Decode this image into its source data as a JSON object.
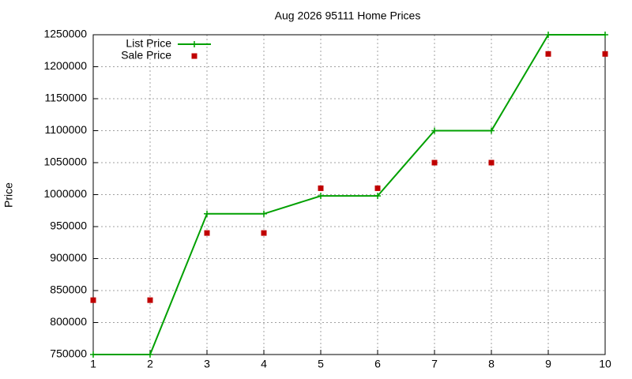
{
  "chart_data": {
    "type": "line",
    "title": "Aug 2026 95111 Home Prices",
    "y_label": "Price",
    "x": [
      1,
      2,
      3,
      4,
      5,
      6,
      7,
      8,
      9,
      10
    ],
    "series": [
      {
        "name": "List Price",
        "color": "#00a000",
        "style": "linespoints",
        "values": [
          750000,
          750000,
          970000,
          970000,
          998000,
          998000,
          1100000,
          1100000,
          1250000,
          1250000
        ]
      },
      {
        "name": "Sale Price",
        "color": "#c00000",
        "style": "points",
        "values": [
          835000,
          835000,
          940000,
          940000,
          1010000,
          1010000,
          1050000,
          1050000,
          1220000,
          1220000
        ]
      }
    ],
    "xlim": [
      1,
      10
    ],
    "xticks": [
      1,
      2,
      3,
      4,
      5,
      6,
      7,
      8,
      9,
      10
    ],
    "ylim": [
      750000,
      1250000
    ],
    "yticks": [
      750000,
      800000,
      850000,
      900000,
      950000,
      1000000,
      1050000,
      1100000,
      1150000,
      1200000,
      1250000
    ],
    "grid": true,
    "legend": "top-left"
  }
}
